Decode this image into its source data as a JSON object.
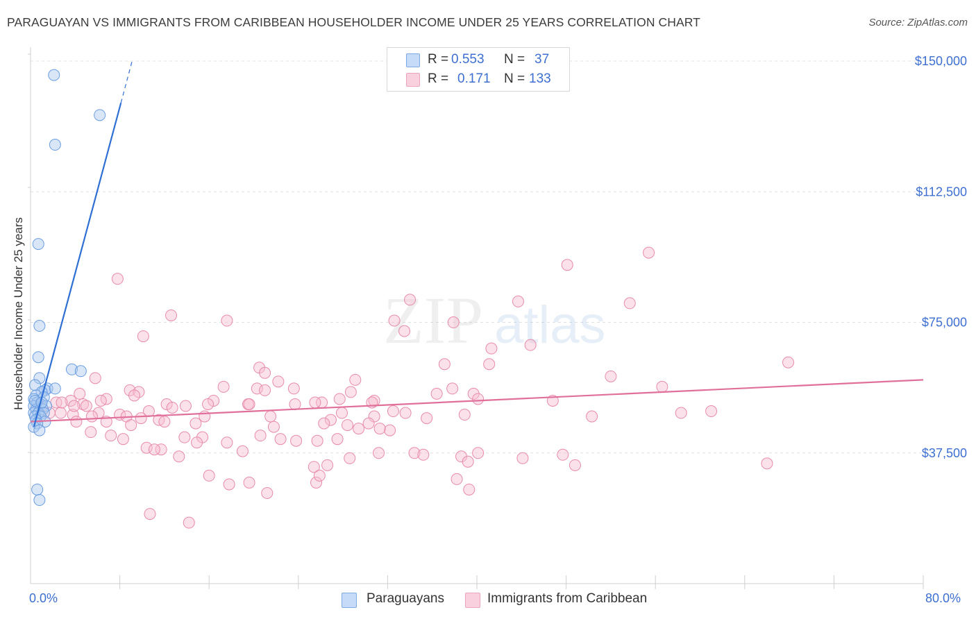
{
  "header": {
    "title": "PARAGUAYAN VS IMMIGRANTS FROM CARIBBEAN HOUSEHOLDER INCOME UNDER 25 YEARS CORRELATION CHART",
    "source": "Source: ZipAtlas.com"
  },
  "watermark": {
    "zip": "ZIP",
    "atlas": "atlas"
  },
  "legend": {
    "rows": [
      {
        "r_label": "R =",
        "r_value": "0.553",
        "n_label": "N =",
        "n_value": "37"
      },
      {
        "r_label": "R =",
        "r_value": "0.171",
        "n_label": "N =",
        "n_value": "133"
      }
    ]
  },
  "bottom_legend": {
    "series1": "Paraguayans",
    "series2": "Immigrants from Caribbean"
  },
  "axis_labels": {
    "y": "Householder Income Under 25 years",
    "x_min": "0.0%",
    "x_max": "80.0%"
  },
  "colors": {
    "blue_fill": "#a8c8f0",
    "blue_stroke": "#6a9de0",
    "blue_line": "#2e6fd4",
    "pink_fill": "#f6bfd1",
    "pink_stroke": "#e88aab",
    "pink_line": "#e0709a",
    "tick_text": "#3d6fd1",
    "grid": "#e0e0e0"
  },
  "chart_data": {
    "type": "scatter",
    "title": "PARAGUAYAN VS IMMIGRANTS FROM CARIBBEAN HOUSEHOLDER INCOME UNDER 25 YEARS CORRELATION CHART",
    "xlabel": "",
    "ylabel": "Householder Income Under 25 years",
    "xlim": [
      0,
      80
    ],
    "ylim": [
      0,
      152000
    ],
    "y_ticks": [
      37500,
      75000,
      112500,
      150000
    ],
    "y_tick_labels": [
      "$37,500",
      "$75,000",
      "$112,500",
      "$150,000"
    ],
    "x_tick_labels": [
      "0.0%",
      "80.0%"
    ],
    "grid": true,
    "legend_position": "top-center",
    "series": [
      {
        "name": "Paraguayans",
        "color": "#a8c8f0",
        "r": 0.553,
        "n": 37,
        "trend": {
          "x0": 0.3,
          "y0": 45000,
          "x1": 8.1,
          "y1": 138000,
          "dash_to_x": 9.1,
          "dash_to_y": 150000
        },
        "points": [
          [
            2.1,
            146000
          ],
          [
            6.2,
            134500
          ],
          [
            2.2,
            126000
          ],
          [
            0.7,
            97500
          ],
          [
            0.8,
            74000
          ],
          [
            0.7,
            65000
          ],
          [
            3.7,
            61500
          ],
          [
            4.5,
            61000
          ],
          [
            0.8,
            59000
          ],
          [
            0.4,
            57000
          ],
          [
            1.5,
            56000
          ],
          [
            1.3,
            55500
          ],
          [
            1.0,
            55000
          ],
          [
            2.2,
            56000
          ],
          [
            0.5,
            54000
          ],
          [
            0.3,
            53000
          ],
          [
            1.2,
            53500
          ],
          [
            0.6,
            52000
          ],
          [
            0.9,
            51500
          ],
          [
            0.3,
            51000
          ],
          [
            1.4,
            51000
          ],
          [
            0.5,
            50000
          ],
          [
            1.1,
            50000
          ],
          [
            0.3,
            49000
          ],
          [
            0.7,
            49000
          ],
          [
            1.2,
            49000
          ],
          [
            0.4,
            48000
          ],
          [
            0.9,
            48000
          ],
          [
            0.5,
            47000
          ],
          [
            1.3,
            46500
          ],
          [
            0.6,
            46000
          ],
          [
            0.3,
            45000
          ],
          [
            0.8,
            44000
          ],
          [
            0.4,
            52500
          ],
          [
            1.0,
            52000
          ],
          [
            0.6,
            27000
          ],
          [
            0.8,
            24000
          ]
        ]
      },
      {
        "name": "Immigrants from Caribbean",
        "color": "#f6bfd1",
        "r": 0.171,
        "n": 133,
        "trend": {
          "x0": 0,
          "y0": 46500,
          "x1": 80,
          "y1": 58500
        },
        "points": [
          [
            55.4,
            95000
          ],
          [
            48.1,
            91500
          ],
          [
            7.8,
            87500
          ],
          [
            34.0,
            81500
          ],
          [
            43.7,
            81000
          ],
          [
            53.7,
            80500
          ],
          [
            12.6,
            77000
          ],
          [
            17.6,
            75500
          ],
          [
            32.6,
            75500
          ],
          [
            37.9,
            75000
          ],
          [
            33.5,
            72500
          ],
          [
            10.1,
            71000
          ],
          [
            41.3,
            67500
          ],
          [
            44.8,
            68500
          ],
          [
            67.9,
            63500
          ],
          [
            37.1,
            63000
          ],
          [
            41.1,
            63000
          ],
          [
            20.5,
            62000
          ],
          [
            21.0,
            60500
          ],
          [
            5.8,
            59000
          ],
          [
            52.0,
            59500
          ],
          [
            29.1,
            58500
          ],
          [
            22.2,
            58000
          ],
          [
            17.3,
            56500
          ],
          [
            20.3,
            56000
          ],
          [
            56.6,
            56500
          ],
          [
            23.6,
            56000
          ],
          [
            37.8,
            56000
          ],
          [
            39.7,
            54500
          ],
          [
            8.9,
            55500
          ],
          [
            9.7,
            55000
          ],
          [
            36.4,
            54500
          ],
          [
            4.4,
            54500
          ],
          [
            21.0,
            55500
          ],
          [
            28.7,
            55000
          ],
          [
            27.7,
            53000
          ],
          [
            46.8,
            52500
          ],
          [
            9.3,
            54000
          ],
          [
            30.8,
            52500
          ],
          [
            16.4,
            52500
          ],
          [
            26.1,
            52000
          ],
          [
            19.5,
            51500
          ],
          [
            25.5,
            52000
          ],
          [
            30.6,
            52000
          ],
          [
            19.6,
            51500
          ],
          [
            12.2,
            51500
          ],
          [
            13.9,
            51000
          ],
          [
            40.1,
            53000
          ],
          [
            23.7,
            51500
          ],
          [
            15.9,
            51500
          ],
          [
            6.8,
            53000
          ],
          [
            6.3,
            52500
          ],
          [
            3.6,
            52500
          ],
          [
            4.7,
            51500
          ],
          [
            2.3,
            52000
          ],
          [
            5.0,
            51000
          ],
          [
            12.7,
            50500
          ],
          [
            8.0,
            48500
          ],
          [
            10.6,
            49500
          ],
          [
            33.6,
            49000
          ],
          [
            32.5,
            49500
          ],
          [
            61.0,
            49500
          ],
          [
            27.9,
            49000
          ],
          [
            58.3,
            49000
          ],
          [
            6.1,
            49000
          ],
          [
            2.7,
            49000
          ],
          [
            3.8,
            48500
          ],
          [
            5.5,
            48000
          ],
          [
            15.6,
            48000
          ],
          [
            21.5,
            48000
          ],
          [
            30.8,
            48000
          ],
          [
            50.3,
            48000
          ],
          [
            38.9,
            48500
          ],
          [
            35.5,
            47500
          ],
          [
            26.9,
            47000
          ],
          [
            11.5,
            47000
          ],
          [
            8.6,
            48000
          ],
          [
            9.9,
            47500
          ],
          [
            4.1,
            46500
          ],
          [
            12.0,
            46500
          ],
          [
            14.8,
            46000
          ],
          [
            6.8,
            46500
          ],
          [
            9.0,
            45500
          ],
          [
            26.3,
            46000
          ],
          [
            21.8,
            45000
          ],
          [
            28.4,
            45500
          ],
          [
            30.3,
            46000
          ],
          [
            29.4,
            44500
          ],
          [
            32.2,
            44000
          ],
          [
            31.3,
            44500
          ],
          [
            5.4,
            43500
          ],
          [
            7.2,
            42500
          ],
          [
            13.8,
            42000
          ],
          [
            15.4,
            42000
          ],
          [
            17.6,
            40500
          ],
          [
            20.6,
            42500
          ],
          [
            22.4,
            41500
          ],
          [
            23.8,
            41000
          ],
          [
            25.7,
            41000
          ],
          [
            27.5,
            41500
          ],
          [
            8.3,
            41500
          ],
          [
            14.9,
            40500
          ],
          [
            11.7,
            38500
          ],
          [
            19.0,
            38000
          ],
          [
            34.4,
            37500
          ],
          [
            40.1,
            37500
          ],
          [
            47.7,
            37000
          ],
          [
            38.6,
            36500
          ],
          [
            31.2,
            37500
          ],
          [
            35.2,
            37000
          ],
          [
            39.2,
            35000
          ],
          [
            44.1,
            36000
          ],
          [
            28.6,
            36000
          ],
          [
            25.4,
            33500
          ],
          [
            13.3,
            36500
          ],
          [
            10.4,
            39000
          ],
          [
            11.1,
            38500
          ],
          [
            26.6,
            34000
          ],
          [
            16.0,
            31000
          ],
          [
            17.8,
            28500
          ],
          [
            19.6,
            29000
          ],
          [
            25.6,
            29000
          ],
          [
            25.9,
            31000
          ],
          [
            21.2,
            26000
          ],
          [
            38.2,
            30000
          ],
          [
            39.3,
            27000
          ],
          [
            48.8,
            34000
          ],
          [
            66.0,
            34500
          ],
          [
            10.7,
            20000
          ],
          [
            14.2,
            17500
          ],
          [
            2.8,
            52000
          ],
          [
            3.9,
            51000
          ],
          [
            1.7,
            49000
          ]
        ]
      }
    ]
  }
}
